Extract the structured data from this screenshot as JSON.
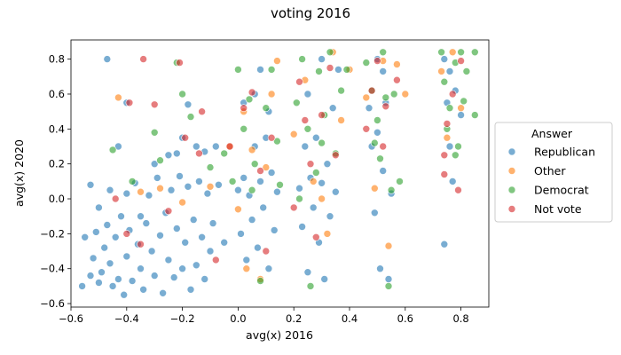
{
  "chart_data": {
    "type": "scatter",
    "title": "voting 2016",
    "xlabel": "avg(x) 2016",
    "ylabel": "avg(x) 2020",
    "xlim": [
      -0.6,
      0.9
    ],
    "ylim": [
      -0.62,
      0.91
    ],
    "x_ticks": [
      "−0.6",
      "−0.4",
      "−0.2",
      "0.0",
      "0.2",
      "0.4",
      "0.6",
      "0.8"
    ],
    "y_ticks": [
      "−0.6",
      "−0.4",
      "−0.2",
      "0.0",
      "0.2",
      "0.4",
      "0.6",
      "0.8"
    ],
    "x_tick_values": [
      -0.6,
      -0.4,
      -0.2,
      0.0,
      0.2,
      0.4,
      0.6,
      0.8
    ],
    "y_tick_values": [
      -0.6,
      -0.4,
      -0.2,
      0.0,
      0.2,
      0.4,
      0.6,
      0.8
    ],
    "grid": false,
    "legend": {
      "title": "Answer",
      "placement": "right-outside"
    },
    "series": [
      {
        "name": "Republican",
        "color": "#1f77b4",
        "points": [
          [
            -0.56,
            -0.5
          ],
          [
            -0.55,
            -0.22
          ],
          [
            -0.53,
            -0.44
          ],
          [
            -0.52,
            -0.34
          ],
          [
            -0.51,
            -0.19
          ],
          [
            -0.5,
            -0.48
          ],
          [
            -0.49,
            -0.42
          ],
          [
            -0.48,
            -0.28
          ],
          [
            -0.47,
            -0.15
          ],
          [
            -0.46,
            0.05
          ],
          [
            -0.46,
            -0.37
          ],
          [
            -0.45,
            -0.5
          ],
          [
            -0.44,
            -0.22
          ],
          [
            -0.43,
            0.3
          ],
          [
            -0.43,
            -0.46
          ],
          [
            -0.42,
            -0.1
          ],
          [
            -0.41,
            -0.55
          ],
          [
            -0.4,
            0.03
          ],
          [
            -0.4,
            -0.33
          ],
          [
            -0.39,
            -0.18
          ],
          [
            -0.38,
            -0.47
          ],
          [
            -0.37,
            0.09
          ],
          [
            -0.36,
            -0.26
          ],
          [
            -0.35,
            -0.4
          ],
          [
            -0.34,
            -0.52
          ],
          [
            -0.33,
            -0.14
          ],
          [
            -0.32,
            0.02
          ],
          [
            -0.31,
            -0.3
          ],
          [
            -0.3,
            -0.44
          ],
          [
            -0.29,
            0.12
          ],
          [
            -0.28,
            -0.21
          ],
          [
            -0.27,
            -0.54
          ],
          [
            -0.26,
            -0.08
          ],
          [
            -0.25,
            -0.35
          ],
          [
            -0.24,
            0.05
          ],
          [
            -0.23,
            -0.45
          ],
          [
            -0.22,
            -0.17
          ],
          [
            -0.21,
            0.13
          ],
          [
            -0.2,
            -0.4
          ],
          [
            -0.19,
            -0.25
          ],
          [
            -0.18,
            0.07
          ],
          [
            -0.17,
            -0.52
          ],
          [
            -0.16,
            -0.12
          ],
          [
            -0.15,
            -0.38
          ],
          [
            -0.14,
            0.1
          ],
          [
            -0.13,
            -0.22
          ],
          [
            -0.12,
            -0.46
          ],
          [
            -0.11,
            0.03
          ],
          [
            -0.1,
            -0.3
          ],
          [
            -0.09,
            -0.14
          ],
          [
            -0.07,
            0.08
          ],
          [
            -0.05,
            -0.25
          ],
          [
            -0.47,
            0.8
          ],
          [
            -0.18,
            0.54
          ],
          [
            -0.22,
            0.26
          ],
          [
            -0.15,
            0.3
          ],
          [
            -0.4,
            0.55
          ],
          [
            0.0,
            0.05
          ],
          [
            0.01,
            -0.2
          ],
          [
            0.02,
            0.12
          ],
          [
            0.03,
            -0.35
          ],
          [
            0.04,
            0.02
          ],
          [
            0.05,
            -0.12
          ],
          [
            0.06,
            0.3
          ],
          [
            0.07,
            -0.28
          ],
          [
            0.08,
            0.1
          ],
          [
            0.09,
            -0.05
          ],
          [
            0.1,
            0.35
          ],
          [
            0.11,
            -0.4
          ],
          [
            0.12,
            0.15
          ],
          [
            0.13,
            -0.18
          ],
          [
            0.14,
            0.04
          ],
          [
            0.02,
            0.55
          ],
          [
            0.06,
            0.6
          ],
          [
            0.11,
            0.5
          ],
          [
            0.08,
            0.74
          ],
          [
            0.22,
            0.06
          ],
          [
            0.23,
            -0.16
          ],
          [
            0.24,
            0.3
          ],
          [
            0.25,
            -0.42
          ],
          [
            0.26,
            0.12
          ],
          [
            0.27,
            -0.05
          ],
          [
            0.28,
            0.35
          ],
          [
            0.29,
            -0.25
          ],
          [
            0.3,
            0.09
          ],
          [
            0.31,
            -0.46
          ],
          [
            0.32,
            0.2
          ],
          [
            0.33,
            -0.1
          ],
          [
            0.34,
            0.52
          ],
          [
            0.35,
            0.04
          ],
          [
            0.25,
            0.6
          ],
          [
            0.3,
            0.8
          ],
          [
            0.36,
            0.74
          ],
          [
            0.47,
            0.52
          ],
          [
            0.48,
            0.3
          ],
          [
            0.49,
            -0.08
          ],
          [
            0.5,
            0.8
          ],
          [
            0.51,
            -0.4
          ],
          [
            0.52,
            0.16
          ],
          [
            0.53,
            0.55
          ],
          [
            0.54,
            -0.46
          ],
          [
            0.55,
            0.03
          ],
          [
            0.5,
            0.38
          ],
          [
            0.52,
            0.73
          ],
          [
            0.74,
            0.8
          ],
          [
            0.75,
            0.55
          ],
          [
            0.76,
            0.3
          ],
          [
            0.77,
            0.1
          ],
          [
            0.74,
            -0.26
          ],
          [
            0.78,
            0.62
          ],
          [
            0.8,
            0.48
          ],
          [
            0.76,
            0.73
          ],
          [
            -0.53,
            0.08
          ],
          [
            -0.5,
            -0.05
          ],
          [
            -0.35,
            -0.1
          ],
          [
            -0.3,
            0.2
          ],
          [
            -0.25,
            0.25
          ],
          [
            -0.2,
            0.35
          ],
          [
            -0.12,
            0.27
          ],
          [
            -0.08,
            0.3
          ]
        ]
      },
      {
        "name": "Other",
        "color": "#ff7f0e",
        "points": [
          [
            -0.43,
            0.58
          ],
          [
            -0.35,
            0.04
          ],
          [
            -0.28,
            0.06
          ],
          [
            -0.2,
            -0.02
          ],
          [
            -0.1,
            0.07
          ],
          [
            0.0,
            -0.06
          ],
          [
            0.02,
            0.5
          ],
          [
            0.05,
            0.28
          ],
          [
            0.08,
            -0.46
          ],
          [
            0.1,
            0.18
          ],
          [
            0.12,
            0.6
          ],
          [
            0.14,
            0.79
          ],
          [
            0.2,
            0.37
          ],
          [
            0.24,
            0.68
          ],
          [
            0.27,
            0.1
          ],
          [
            0.3,
            0.0
          ],
          [
            0.32,
            -0.2
          ],
          [
            0.34,
            0.84
          ],
          [
            0.37,
            0.45
          ],
          [
            0.4,
            0.74
          ],
          [
            0.46,
            0.58
          ],
          [
            0.49,
            0.06
          ],
          [
            0.52,
            0.79
          ],
          [
            0.54,
            -0.27
          ],
          [
            0.57,
            0.77
          ],
          [
            0.6,
            0.6
          ],
          [
            0.73,
            0.73
          ],
          [
            0.77,
            0.84
          ],
          [
            0.8,
            0.52
          ],
          [
            0.75,
            0.35
          ],
          [
            -0.03,
            0.3
          ],
          [
            0.03,
            -0.4
          ]
        ]
      },
      {
        "name": "Democrat",
        "color": "#2ca02c",
        "points": [
          [
            -0.45,
            0.28
          ],
          [
            -0.38,
            0.1
          ],
          [
            -0.3,
            0.38
          ],
          [
            -0.28,
            0.22
          ],
          [
            -0.22,
            0.78
          ],
          [
            -0.2,
            0.6
          ],
          [
            -0.17,
            0.47
          ],
          [
            -0.1,
            0.18
          ],
          [
            -0.05,
            0.26
          ],
          [
            0.0,
            0.74
          ],
          [
            0.02,
            0.4
          ],
          [
            0.04,
            0.57
          ],
          [
            0.06,
            0.2
          ],
          [
            0.08,
            -0.47
          ],
          [
            0.1,
            0.52
          ],
          [
            0.12,
            0.74
          ],
          [
            0.14,
            0.33
          ],
          [
            0.21,
            0.55
          ],
          [
            0.23,
            0.8
          ],
          [
            0.25,
            0.4
          ],
          [
            0.26,
            -0.5
          ],
          [
            0.28,
            0.15
          ],
          [
            0.29,
            0.73
          ],
          [
            0.31,
            0.48
          ],
          [
            0.33,
            0.84
          ],
          [
            0.35,
            0.26
          ],
          [
            0.37,
            0.62
          ],
          [
            0.39,
            0.74
          ],
          [
            0.46,
            0.78
          ],
          [
            0.48,
            0.62
          ],
          [
            0.49,
            0.32
          ],
          [
            0.5,
            0.45
          ],
          [
            0.51,
            0.23
          ],
          [
            0.52,
            0.84
          ],
          [
            0.53,
            0.58
          ],
          [
            0.54,
            -0.5
          ],
          [
            0.56,
            0.6
          ],
          [
            0.58,
            0.1
          ],
          [
            0.73,
            0.84
          ],
          [
            0.74,
            0.67
          ],
          [
            0.75,
            0.4
          ],
          [
            0.76,
            0.52
          ],
          [
            0.78,
            0.78
          ],
          [
            0.79,
            0.3
          ],
          [
            0.8,
            0.84
          ],
          [
            0.81,
            0.56
          ],
          [
            0.82,
            0.73
          ],
          [
            0.85,
            0.84
          ],
          [
            0.85,
            0.48
          ],
          [
            0.78,
            0.25
          ],
          [
            0.55,
            0.05
          ],
          [
            0.3,
            0.32
          ],
          [
            0.15,
            0.08
          ],
          [
            -0.02,
            0.1
          ],
          [
            0.05,
            0.05
          ],
          [
            0.22,
            0.0
          ]
        ]
      },
      {
        "name": "Not vote",
        "color": "#d62728",
        "points": [
          [
            -0.34,
            0.8
          ],
          [
            -0.39,
            0.55
          ],
          [
            -0.3,
            0.54
          ],
          [
            -0.4,
            -0.2
          ],
          [
            -0.35,
            -0.26
          ],
          [
            -0.21,
            0.78
          ],
          [
            -0.19,
            0.35
          ],
          [
            -0.14,
            0.26
          ],
          [
            -0.13,
            0.5
          ],
          [
            -0.03,
            0.3
          ],
          [
            0.02,
            0.52
          ],
          [
            0.05,
            0.61
          ],
          [
            0.08,
            0.16
          ],
          [
            0.1,
            -0.3
          ],
          [
            0.12,
            0.35
          ],
          [
            0.22,
            0.67
          ],
          [
            0.24,
            0.45
          ],
          [
            0.26,
            0.2
          ],
          [
            0.28,
            -0.22
          ],
          [
            0.3,
            0.48
          ],
          [
            0.33,
            0.75
          ],
          [
            0.35,
            0.25
          ],
          [
            0.48,
            0.62
          ],
          [
            0.5,
            0.79
          ],
          [
            0.52,
            0.3
          ],
          [
            0.53,
            0.53
          ],
          [
            0.74,
            0.14
          ],
          [
            0.75,
            0.43
          ],
          [
            0.77,
            0.6
          ],
          [
            0.79,
            0.05
          ],
          [
            0.8,
            0.79
          ],
          [
            0.74,
            0.25
          ],
          [
            -0.44,
            0.0
          ],
          [
            -0.25,
            -0.07
          ],
          [
            -0.08,
            -0.35
          ],
          [
            0.2,
            -0.05
          ],
          [
            0.46,
            0.4
          ],
          [
            0.57,
            0.68
          ]
        ]
      }
    ]
  }
}
